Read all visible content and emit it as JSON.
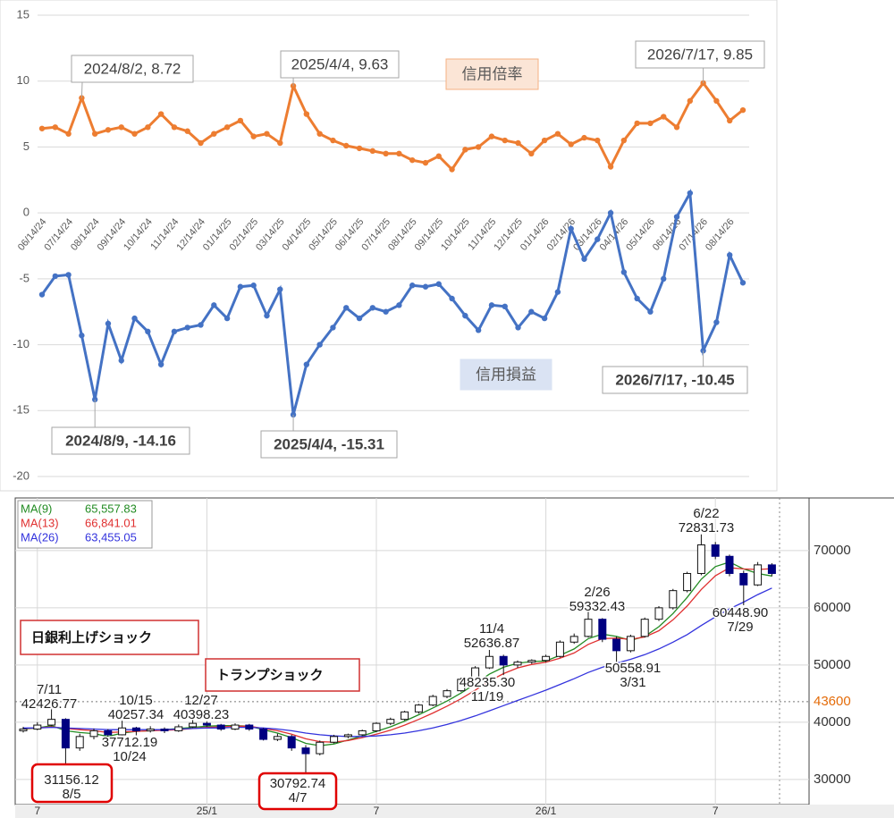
{
  "chart_data": [
    {
      "type": "line",
      "categories": [
        "06/14/24",
        null,
        "07/14/24",
        null,
        "08/14/24",
        null,
        "09/14/24",
        null,
        "10/14/24",
        null,
        "11/14/24",
        null,
        "12/14/24",
        null,
        "01/14/25",
        null,
        "02/14/25",
        null,
        "03/14/25",
        null,
        "04/14/25",
        null,
        "05/14/25",
        null,
        "06/14/25",
        null,
        "07/14/25",
        null,
        "08/14/25",
        null,
        "09/14/25",
        null,
        "10/14/25",
        null,
        "11/14/25",
        null,
        "12/14/25",
        null,
        "01/14/26",
        null,
        "02/14/26",
        null,
        "03/14/26",
        null,
        "04/14/26",
        null,
        "05/14/26",
        null,
        "06/14/26",
        null,
        "07/14/26",
        null,
        "08/14/26",
        null
      ],
      "series": [
        {
          "name": "信用倍率",
          "color": "#ed7d31",
          "values": [
            6.4,
            6.5,
            6.0,
            8.72,
            6.0,
            6.3,
            6.5,
            6.0,
            6.5,
            7.5,
            6.5,
            6.2,
            5.3,
            6.0,
            6.5,
            7.0,
            5.8,
            6.0,
            5.3,
            9.63,
            7.5,
            6.0,
            5.5,
            5.1,
            4.9,
            4.7,
            4.5,
            4.5,
            4.0,
            3.8,
            4.3,
            3.3,
            4.8,
            5.0,
            5.8,
            5.5,
            5.3,
            4.5,
            5.5,
            6.0,
            5.2,
            5.7,
            5.5,
            3.5,
            5.5,
            6.8,
            6.8,
            7.3,
            6.5,
            8.5,
            9.85,
            8.5,
            7.0,
            7.8
          ]
        },
        {
          "name": "信用損益",
          "color": "#4472c4",
          "values": [
            -6.2,
            -4.8,
            -4.7,
            -9.3,
            -14.16,
            -8.4,
            -11.2,
            -8.0,
            -9.0,
            -11.5,
            -9.0,
            -8.7,
            -8.5,
            -7.0,
            -8.0,
            -5.6,
            -5.5,
            -7.8,
            -5.8,
            -15.31,
            -11.5,
            -10.0,
            -8.7,
            -7.2,
            -8.0,
            -7.2,
            -7.5,
            -7.0,
            -5.5,
            -5.6,
            -5.4,
            -6.5,
            -7.8,
            -8.9,
            -7.0,
            -7.1,
            -8.7,
            -7.5,
            -8.0,
            -6.0,
            -1.2,
            -3.5,
            -2.0,
            0,
            -4.5,
            -6.5,
            -7.5,
            -5.0,
            -0.3,
            1.5,
            -10.45,
            -8.3,
            -3.2,
            -5.3
          ]
        }
      ],
      "ylim": [
        -20,
        15
      ],
      "yticks": [
        -20,
        -15,
        -10,
        -5,
        0,
        5,
        10,
        15
      ],
      "grid": true,
      "annotations": [
        "2024/8/2, 8.72",
        "2025/4/4, 9.63",
        "2026/7/17, 9.85",
        "2024/8/9, -14.16",
        "2025/4/4, -15.31",
        "2026/7/17, -10.45"
      ]
    },
    {
      "type": "candlestick",
      "categories": [
        null,
        "7",
        null,
        null,
        null,
        null,
        null,
        null,
        null,
        null,
        null,
        null,
        null,
        "25/1",
        null,
        null,
        null,
        null,
        null,
        null,
        null,
        null,
        null,
        null,
        null,
        "7",
        null,
        null,
        null,
        null,
        null,
        null,
        null,
        null,
        null,
        null,
        null,
        "26/1",
        null,
        null,
        null,
        null,
        null,
        null,
        null,
        null,
        null,
        null,
        null,
        "7",
        null,
        null,
        null,
        null
      ],
      "open": [
        38500,
        38800,
        39500,
        40500,
        35500,
        37500,
        38500,
        37800,
        39000,
        38500,
        38800,
        38500,
        39200,
        39800,
        39500,
        38800,
        39500,
        38800,
        37000,
        37500,
        35500,
        34500,
        36500,
        37500,
        37800,
        38500,
        39800,
        40500,
        41800,
        43000,
        44500,
        45500,
        47500,
        49500,
        51500,
        50000,
        50500,
        50800,
        51500,
        54000,
        55000,
        58000,
        54500,
        52500,
        55000,
        58000,
        60000,
        63000,
        66000,
        71000,
        69000,
        66000,
        64000,
        67500
      ],
      "high": [
        39200,
        40000,
        42426.77,
        40700,
        38000,
        38900,
        38800,
        40257.34,
        39200,
        39300,
        39100,
        39600,
        40398.23,
        40100,
        39700,
        39800,
        39700,
        39000,
        38000,
        37800,
        36000,
        36800,
        37800,
        38000,
        38700,
        40000,
        40800,
        42000,
        43200,
        44800,
        45800,
        47800,
        49800,
        52636.87,
        51800,
        50800,
        51000,
        51800,
        54300,
        55500,
        59332.43,
        58200,
        55000,
        55300,
        58300,
        60300,
        63300,
        66300,
        72831.73,
        71500,
        69300,
        66500,
        68000,
        67800
      ],
      "low": [
        38200,
        38600,
        39300,
        31156.12,
        35000,
        37000,
        37500,
        37700,
        37712.19,
        38200,
        38100,
        38300,
        39000,
        39200,
        38500,
        38600,
        38500,
        36800,
        36700,
        35000,
        30792.74,
        34200,
        36300,
        37200,
        37600,
        38300,
        39500,
        40300,
        41500,
        42800,
        44200,
        45300,
        47300,
        49300,
        48235.3,
        49500,
        50200,
        50500,
        51300,
        53700,
        54800,
        54000,
        50558.91,
        52200,
        54800,
        57700,
        59700,
        62700,
        65700,
        68500,
        65500,
        60448.9,
        63800,
        65500
      ],
      "close": [
        38800,
        39500,
        40500,
        35500,
        37500,
        38500,
        37800,
        39000,
        38500,
        38800,
        38500,
        39200,
        39800,
        39500,
        38800,
        39500,
        38800,
        37000,
        37500,
        35500,
        34500,
        36500,
        37500,
        37800,
        38500,
        39800,
        40500,
        41800,
        43000,
        44500,
        45500,
        47500,
        49500,
        51500,
        50000,
        50500,
        50800,
        51500,
        54000,
        55000,
        58000,
        54500,
        52500,
        55000,
        58000,
        60000,
        63000,
        66000,
        71000,
        69000,
        66000,
        64000,
        67500,
        66000
      ],
      "up_color": "#ffffff",
      "down_color": "#000080",
      "series": [
        {
          "name": "MA(9)",
          "color": "#228b22",
          "last_label": "65,557.83",
          "values": [
            38800,
            39000,
            39400,
            38500,
            38200,
            38000,
            37500,
            38100,
            38400,
            38500,
            38700,
            38900,
            39100,
            39300,
            39400,
            39400,
            39300,
            38700,
            38100,
            37300,
            36300,
            35900,
            36200,
            36900,
            37600,
            38400,
            39200,
            40200,
            41300,
            42500,
            43700,
            45100,
            46700,
            48400,
            49600,
            50300,
            50600,
            50700,
            51700,
            52800,
            54600,
            55400,
            55000,
            54300,
            55000,
            56700,
            59000,
            61800,
            65000,
            67200,
            68000,
            66800,
            66000,
            65557.83
          ]
        },
        {
          "name": "MA(13)",
          "color": "#e03030",
          "last_label": "66,841.01",
          "values": [
            38900,
            39000,
            39200,
            38900,
            38700,
            38500,
            38200,
            38300,
            38400,
            38500,
            38600,
            38700,
            38900,
            39100,
            39200,
            39300,
            39300,
            38900,
            38500,
            37900,
            37100,
            36600,
            36500,
            36800,
            37300,
            37900,
            38600,
            39500,
            40500,
            41600,
            42800,
            44100,
            45600,
            47200,
            48500,
            49500,
            50100,
            50500,
            51200,
            52100,
            53600,
            54600,
            54700,
            54500,
            54900,
            56000,
            57900,
            60300,
            63200,
            65600,
            67000,
            66800,
            66700,
            66841.01
          ]
        },
        {
          "name": "MA(26)",
          "color": "#3333dd",
          "last_label": "63,455.05",
          "values": [
            39000,
            39000,
            39100,
            39000,
            38900,
            38800,
            38700,
            38700,
            38700,
            38700,
            38700,
            38800,
            38900,
            39000,
            39000,
            39100,
            39100,
            39000,
            38800,
            38500,
            38100,
            37800,
            37600,
            37500,
            37500,
            37600,
            37800,
            38100,
            38500,
            39000,
            39600,
            40300,
            41100,
            42000,
            42900,
            43800,
            44700,
            45600,
            46600,
            47600,
            48700,
            49600,
            50300,
            51000,
            51800,
            52800,
            54000,
            55300,
            56900,
            58400,
            59800,
            61000,
            62300,
            63455.05
          ]
        }
      ],
      "ylim": [
        25600,
        79200
      ],
      "yticks": [
        30000,
        40000,
        50000,
        60000,
        70000
      ],
      "grid": true,
      "reference": 43600,
      "reference_color": "#e46c0a",
      "annotations": [
        [
          "7/11",
          "42426.77"
        ],
        [
          "10/15",
          "40257.34"
        ],
        [
          "12/27",
          "40398.23"
        ],
        [
          "37712.19",
          "10/24"
        ],
        [
          "31156.12",
          "8/5"
        ],
        [
          "30792.74",
          "4/7"
        ],
        [
          "11/4",
          "52636.87"
        ],
        [
          "48235.30",
          "11/19"
        ],
        [
          "2/26",
          "59332.43"
        ],
        [
          "50558.91",
          "3/31"
        ],
        [
          "6/22",
          "72831.73"
        ],
        [
          "60448.90",
          "7/29"
        ]
      ],
      "callouts": [
        "日銀利上げショック",
        "トランプショック"
      ]
    }
  ]
}
